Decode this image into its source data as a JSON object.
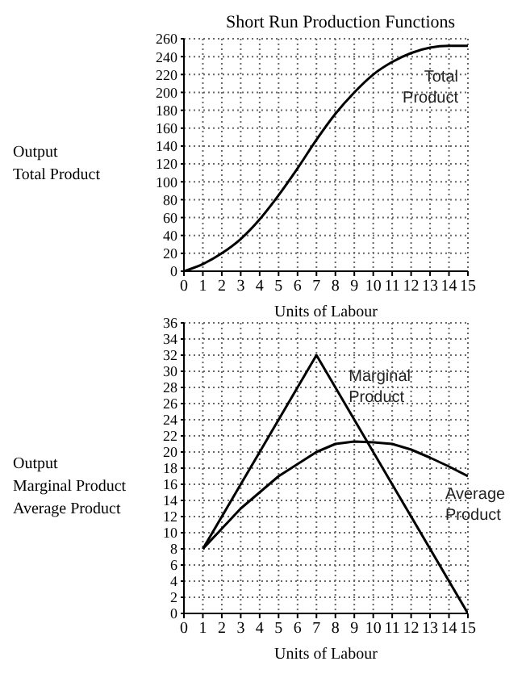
{
  "chart_data": [
    {
      "type": "line",
      "title": "Short Run Production Functions",
      "xlabel": "Units of Labour",
      "ylabel": "Output\nTotal Product",
      "x": [
        0,
        1,
        2,
        3,
        4,
        5,
        6,
        7,
        8,
        9,
        10,
        11,
        12,
        13,
        14,
        15
      ],
      "xlim": [
        0,
        15
      ],
      "xticks": [
        0,
        1,
        2,
        3,
        4,
        5,
        6,
        7,
        8,
        9,
        10,
        11,
        12,
        13,
        14,
        15
      ],
      "ylim": [
        0,
        260
      ],
      "yticks": [
        0,
        20,
        40,
        60,
        80,
        100,
        120,
        140,
        160,
        180,
        200,
        220,
        240,
        260
      ],
      "grid": true,
      "marker": "none",
      "line_style": "solid",
      "series": [
        {
          "name": "Total Product",
          "color": "#000000",
          "values": [
            0,
            8,
            20,
            36,
            58,
            85,
            115,
            147,
            176,
            200,
            220,
            234,
            244,
            250,
            252,
            252
          ]
        }
      ]
    },
    {
      "type": "line",
      "xlabel": "Units of Labour",
      "ylabel": "Output\nMarginal Product\nAverage Product",
      "xlim": [
        0,
        15
      ],
      "xticks": [
        0,
        1,
        2,
        3,
        4,
        5,
        6,
        7,
        8,
        9,
        10,
        11,
        12,
        13,
        14,
        15
      ],
      "ylim": [
        0,
        36
      ],
      "yticks": [
        0,
        2,
        4,
        6,
        8,
        10,
        12,
        14,
        16,
        18,
        20,
        22,
        24,
        26,
        28,
        30,
        32,
        34,
        36
      ],
      "grid": true,
      "marker": "none",
      "line_style": "solid",
      "series": [
        {
          "name": "Marginal Product",
          "color": "#000000",
          "x": [
            1,
            7,
            15
          ],
          "values": [
            8,
            32,
            0
          ]
        },
        {
          "name": "Average Product",
          "color": "#000000",
          "x": [
            1,
            2,
            3,
            4,
            5,
            6,
            7,
            8,
            9,
            10,
            11,
            12,
            13,
            14,
            15
          ],
          "values": [
            8,
            10.5,
            13,
            15,
            17,
            18.5,
            20,
            21,
            21.3,
            21.2,
            21,
            20.3,
            19.3,
            18.2,
            17
          ]
        }
      ]
    }
  ]
}
